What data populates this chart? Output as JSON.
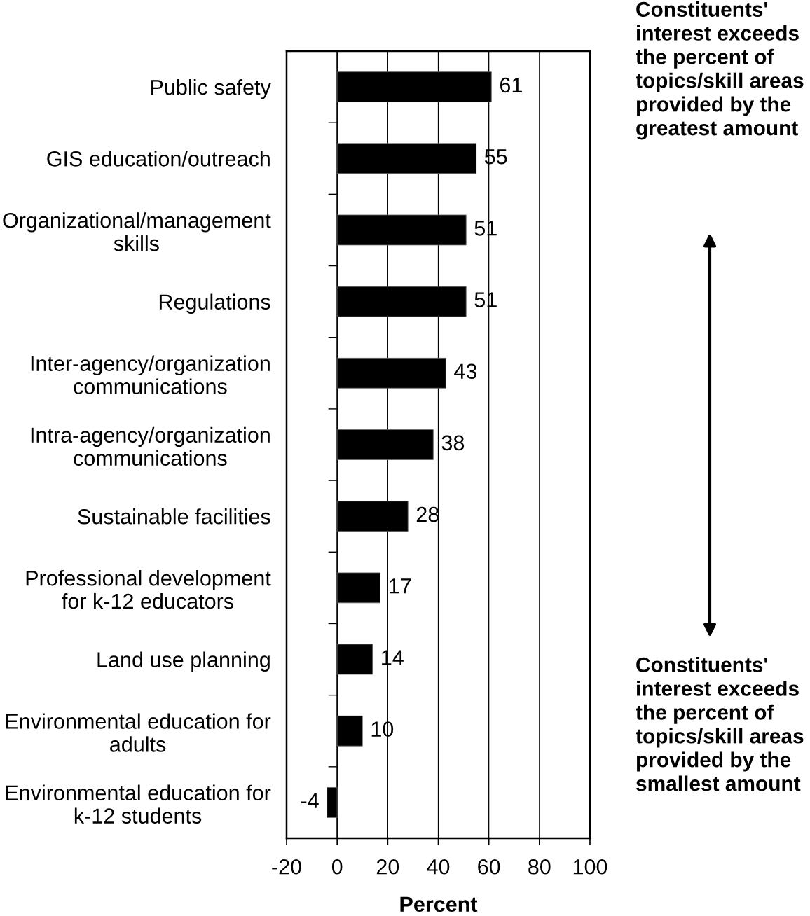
{
  "chart_data": {
    "type": "bar",
    "orientation": "horizontal",
    "xlabel": "Percent",
    "categories": [
      "Public safety",
      "GIS education/outreach",
      "Organizational/management\nskills",
      "Regulations",
      "Inter-agency/organization\ncommunications",
      "Intra-agency/organization\ncommunications",
      "Sustainable facilities",
      "Professional development\nfor k-12 educators",
      "Land use planning",
      "Environmental education for\nadults",
      "Environmental education for\nk-12 students"
    ],
    "values": [
      61,
      55,
      51,
      51,
      43,
      38,
      28,
      17,
      14,
      10,
      -4
    ],
    "color": "#000000",
    "xlim": [
      -20,
      100
    ],
    "xticks": [
      -20,
      0,
      20,
      40,
      60,
      80,
      100
    ],
    "grid": "x",
    "data_labels": true,
    "annotations": [
      "Constituents'\ninterest exceeds\nthe percent of\ntopics/skill areas\nprovided by the\ngreatest amount",
      "Constituents'\ninterest exceeds\nthe percent of\ntopics/skill areas\nprovided by the\nsmallest amount"
    ]
  }
}
